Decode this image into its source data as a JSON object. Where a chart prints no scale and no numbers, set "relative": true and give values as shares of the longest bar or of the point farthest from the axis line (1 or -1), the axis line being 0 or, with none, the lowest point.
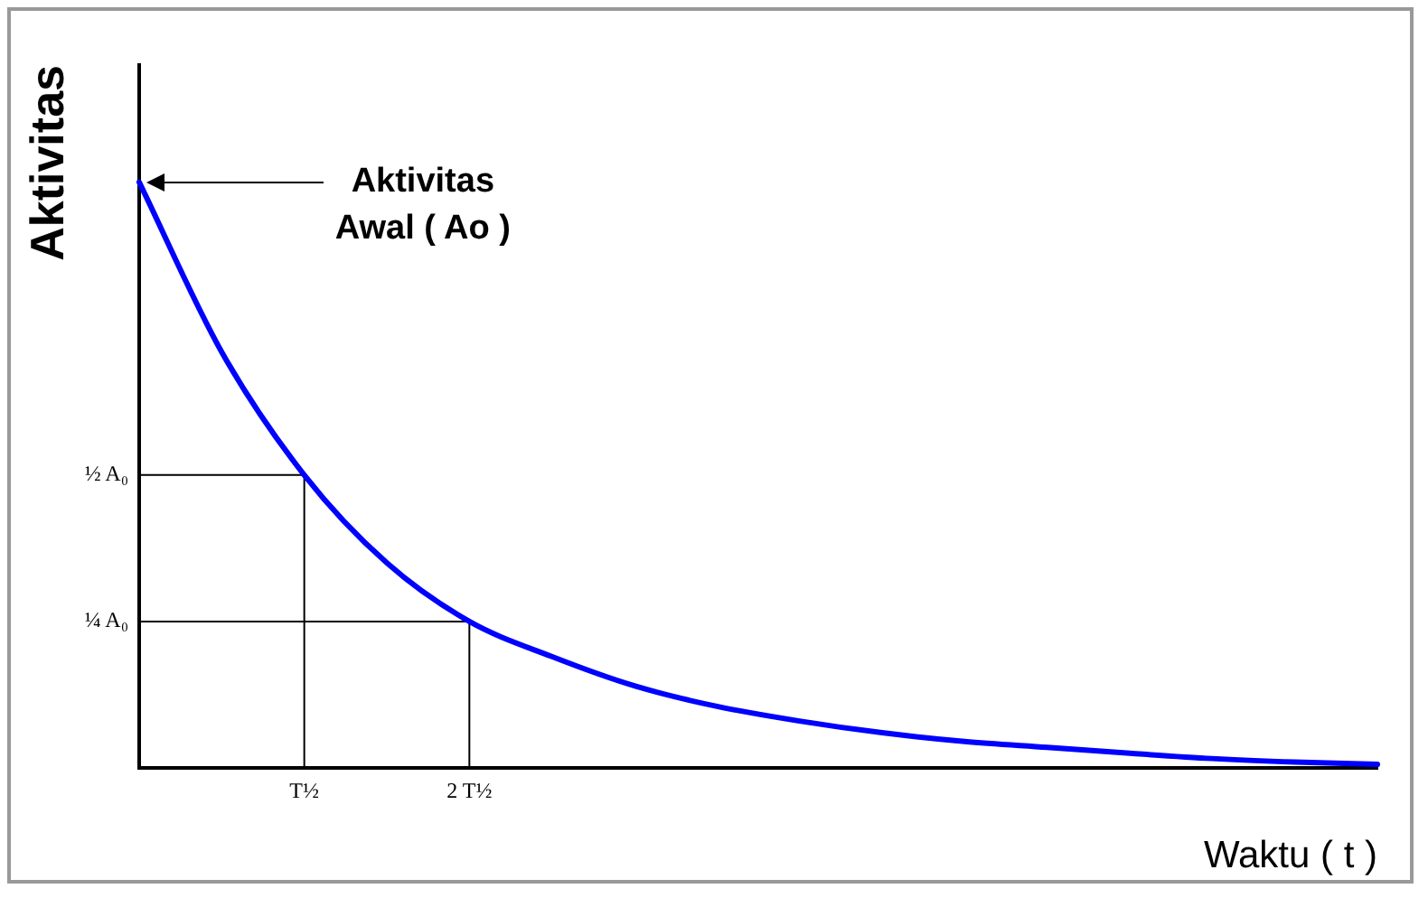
{
  "chart_data": {
    "type": "line",
    "ylabel": "Aktivitas",
    "xlabel": "Waktu ( t )",
    "relative": true,
    "annotations": [
      "Aktivitas\nAwal ( Ao )"
    ],
    "categories": [
      null,
      null,
      "T½",
      null,
      "2 T½",
      null,
      null,
      null,
      null,
      null,
      null,
      null,
      null,
      null,
      null,
      null
    ],
    "ref_lines": [
      {
        "axis": "y",
        "value": 0.5,
        "label": "½ A₀",
        "color": "#000000"
      },
      {
        "axis": "y",
        "value": 0.25,
        "label": "¼ A₀",
        "color": "#000000"
      },
      {
        "axis": "x",
        "value": "T½",
        "color": "#000000"
      },
      {
        "axis": "x",
        "value": "2 T½",
        "color": "#000000"
      }
    ],
    "grid": false,
    "legend": false,
    "marker": "none",
    "line_style": "solid",
    "series": [
      {
        "color": "#0000ff",
        "values": [
          1,
          0.71,
          0.5,
          0.35,
          0.25,
          0.19,
          0.14,
          0.105,
          0.08,
          0.06,
          0.045,
          0.035,
          0.025,
          0.016,
          0.01,
          0.006
        ]
      }
    ]
  }
}
